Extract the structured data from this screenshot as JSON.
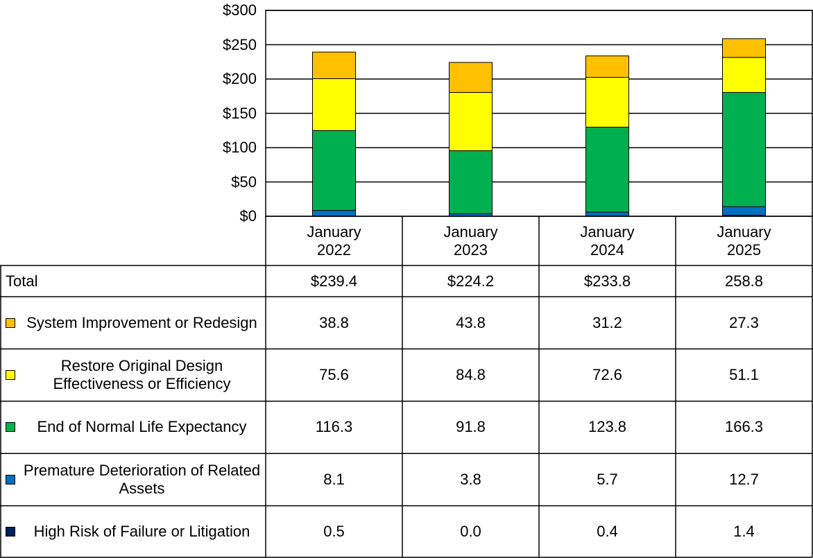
{
  "chart_data": {
    "type": "bar",
    "stacked": true,
    "categories": [
      "January 2022",
      "January 2023",
      "January 2024",
      "January 2025"
    ],
    "ylim": [
      0,
      300
    ],
    "yticks": [
      {
        "value": 0,
        "label": "$0"
      },
      {
        "value": 50,
        "label": "$50"
      },
      {
        "value": 100,
        "label": "$100"
      },
      {
        "value": 150,
        "label": "$150"
      },
      {
        "value": 200,
        "label": "$200"
      },
      {
        "value": 250,
        "label": "$250"
      },
      {
        "value": 300,
        "label": "$300"
      }
    ],
    "grid": true,
    "total": {
      "name": "Total",
      "values": [
        239.4,
        224.2,
        233.8,
        258.8
      ],
      "value_labels": [
        "$239.4",
        "$224.2",
        "$233.8",
        "258.8"
      ]
    },
    "series": [
      {
        "name": "High Risk of Failure or Litigation",
        "color": "#002060",
        "values": [
          0.5,
          0.0,
          0.4,
          1.4
        ],
        "value_labels": [
          "0.5",
          "0.0",
          "0.4",
          "1.4"
        ]
      },
      {
        "name": "Premature Deterioration of Related Assets",
        "color": "#0070c0",
        "values": [
          8.1,
          3.8,
          5.7,
          12.7
        ],
        "value_labels": [
          "8.1",
          "3.8",
          "5.7",
          "12.7"
        ]
      },
      {
        "name": "End of Normal Life Expectancy",
        "color": "#00b050",
        "values": [
          116.3,
          91.8,
          123.8,
          166.3
        ],
        "value_labels": [
          "116.3",
          "91.8",
          "123.8",
          "166.3"
        ]
      },
      {
        "name": "Restore Original Design Effectiveness or Efficiency",
        "color": "#ffff00",
        "values": [
          75.6,
          84.8,
          72.6,
          51.1
        ],
        "value_labels": [
          "75.6",
          "84.8",
          "72.6",
          "51.1"
        ]
      },
      {
        "name": "System Improvement or Redesign",
        "color": "#ffc000",
        "values": [
          38.8,
          43.8,
          31.2,
          27.3
        ],
        "value_labels": [
          "38.8",
          "43.8",
          "31.2",
          "27.3"
        ]
      }
    ]
  }
}
